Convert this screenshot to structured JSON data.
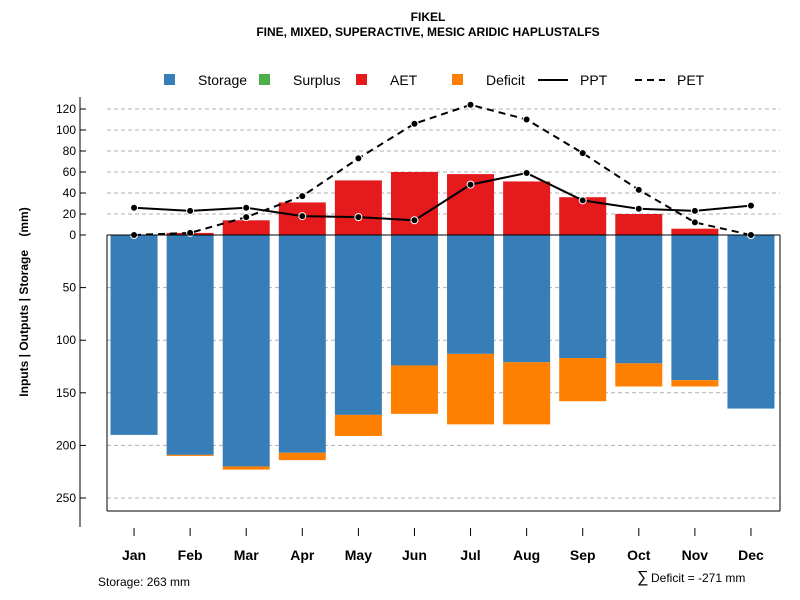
{
  "chart_data": {
    "type": "bar",
    "title": "FIKEL",
    "subtitle": "FINE, MIXED, SUPERACTIVE, MESIC ARIDIC HAPLUSTALFS",
    "ylabel": "Inputs | Outputs | Storage    (mm)",
    "categories": [
      "Jan",
      "Feb",
      "Mar",
      "Apr",
      "May",
      "Jun",
      "Jul",
      "Aug",
      "Sep",
      "Oct",
      "Nov",
      "Dec"
    ],
    "upper_ticks": [
      "120",
      "100",
      "80",
      "60",
      "40",
      "20",
      "0"
    ],
    "lower_ticks": [
      "50",
      "100",
      "150",
      "200",
      "250"
    ],
    "legend": [
      {
        "name": "Storage",
        "kind": "square",
        "color": "#377EB8"
      },
      {
        "name": "Surplus",
        "kind": "square",
        "color": "#4DAF4A"
      },
      {
        "name": "AET",
        "kind": "square",
        "color": "#E41A1C"
      },
      {
        "name": "Deficit",
        "kind": "square",
        "color": "#FF7F00"
      },
      {
        "name": "PPT",
        "kind": "solid"
      },
      {
        "name": "PET",
        "kind": "dashed"
      }
    ],
    "series": [
      {
        "name": "Storage",
        "color": "#377EB8",
        "values": [
          190,
          209,
          220,
          207,
          171,
          124,
          113,
          121,
          117,
          122,
          138,
          165
        ]
      },
      {
        "name": "Deficit",
        "color": "#FF7F00",
        "values": [
          0,
          1,
          3,
          7,
          20,
          46,
          67,
          59,
          41,
          22,
          6,
          0
        ]
      },
      {
        "name": "AET",
        "color": "#E41A1C",
        "values": [
          0,
          2,
          14,
          31,
          52,
          60,
          58,
          51,
          36,
          20,
          6,
          0
        ]
      },
      {
        "name": "PPT",
        "type": "line",
        "values": [
          26,
          23,
          26,
          18,
          17,
          14,
          48,
          59,
          33,
          25,
          23,
          28
        ]
      },
      {
        "name": "PET",
        "type": "line",
        "values": [
          0,
          2,
          17,
          37,
          73,
          106,
          124,
          110,
          78,
          43,
          12,
          0
        ]
      }
    ],
    "upper_range": [
      0,
      125
    ],
    "lower_range": [
      0,
      262
    ],
    "footnote_storage": "Storage: 263 mm",
    "footnote_deficit": "Deficit = -271 mm",
    "footnote_deficit_symbol": "∑"
  }
}
